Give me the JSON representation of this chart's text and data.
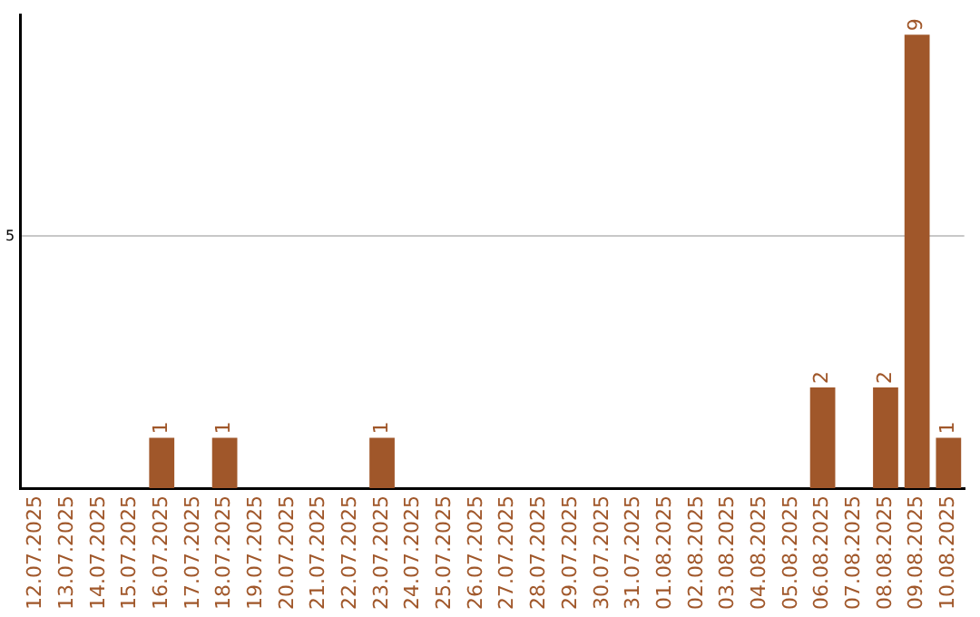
{
  "chart_data": {
    "type": "bar",
    "categories": [
      "12.07.2025",
      "13.07.2025",
      "14.07.2025",
      "15.07.2025",
      "16.07.2025",
      "17.07.2025",
      "18.07.2025",
      "19.07.2025",
      "20.07.2025",
      "21.07.2025",
      "22.07.2025",
      "23.07.2025",
      "24.07.2025",
      "25.07.2025",
      "26.07.2025",
      "27.07.2025",
      "28.07.2025",
      "29.07.2025",
      "30.07.2025",
      "31.07.2025",
      "01.08.2025",
      "02.08.2025",
      "03.08.2025",
      "04.08.2025",
      "05.08.2025",
      "06.08.2025",
      "07.08.2025",
      "08.08.2025",
      "09.08.2025",
      "10.08.2025"
    ],
    "values": [
      0,
      0,
      0,
      0,
      1,
      0,
      1,
      0,
      0,
      0,
      0,
      1,
      0,
      0,
      0,
      0,
      0,
      0,
      0,
      0,
      0,
      0,
      0,
      0,
      0,
      2,
      0,
      2,
      9,
      1
    ],
    "value_labels": [
      null,
      null,
      null,
      null,
      "1",
      null,
      "1",
      null,
      null,
      null,
      null,
      "1",
      null,
      null,
      null,
      null,
      null,
      null,
      null,
      null,
      null,
      null,
      null,
      null,
      null,
      "2",
      null,
      "2",
      "9",
      "1"
    ],
    "color": "#a0572a",
    "ylim": [
      0,
      9.4
    ],
    "yticks": [
      5
    ],
    "grid": "y",
    "legend": false
  }
}
